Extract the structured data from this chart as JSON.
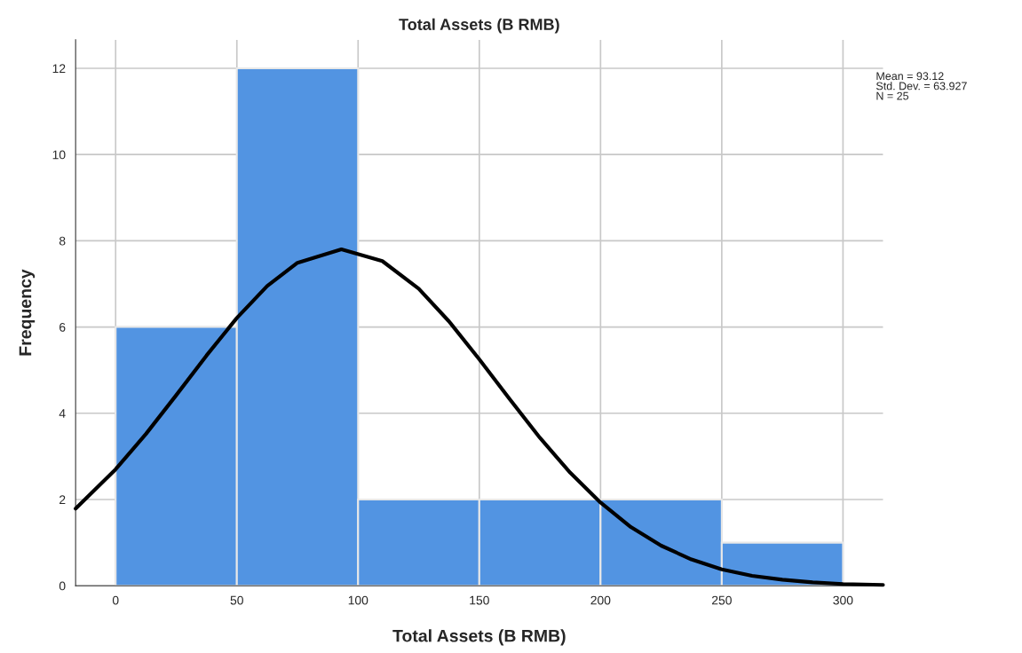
{
  "chart_data": {
    "type": "histogram",
    "title": "Total Assets (B RMB)",
    "xlabel": "Total Assets (B RMB)",
    "ylabel": "Frequency",
    "bins": [
      0,
      50,
      100,
      150,
      200,
      250,
      300
    ],
    "values": [
      6,
      12,
      2,
      2,
      2,
      1
    ],
    "color": "#5294e2",
    "series": [
      {
        "type": "line",
        "color": "#000000",
        "x": [
          -16.5,
          0,
          12.5,
          25,
          37.5,
          50,
          62.5,
          75,
          93.12,
          110,
          125,
          137.5,
          150,
          162.5,
          175,
          187.5,
          200,
          212.5,
          225,
          237.5,
          250,
          262.5,
          275,
          287.5,
          300,
          316.5
        ],
        "values": [
          1.79,
          2.7,
          3.52,
          4.42,
          5.34,
          6.21,
          6.95,
          7.49,
          7.8,
          7.53,
          6.89,
          6.13,
          5.25,
          4.33,
          3.43,
          2.62,
          1.93,
          1.36,
          0.93,
          0.61,
          0.38,
          0.23,
          0.14,
          0.08,
          0.04,
          0.02
        ]
      }
    ],
    "xlim": [
      -16.5,
      316.5
    ],
    "ylim": [
      0,
      12.66
    ],
    "xticks": [
      0,
      50,
      100,
      150,
      200,
      250,
      300
    ],
    "yticks": [
      0,
      2,
      4,
      6,
      8,
      10,
      12
    ],
    "grid": true,
    "line_style": "solid",
    "marker": "none",
    "annotations": [
      "Mean = 93.12\nStd. Dev. = 63.927\nN = 25"
    ]
  }
}
